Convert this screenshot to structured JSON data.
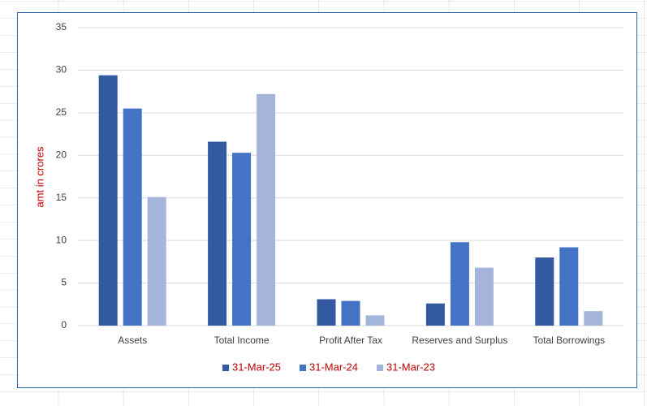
{
  "chart_data": {
    "type": "bar",
    "y_label": "amt in crores",
    "categories": [
      "Assets",
      "Total Income",
      "Profit After Tax",
      "Reserves and Surplus",
      "Total Borrowings"
    ],
    "series": [
      {
        "name": "31-Mar-25",
        "color": "#335aa1",
        "values": [
          29.4,
          21.6,
          3.1,
          2.6,
          8.0
        ]
      },
      {
        "name": "31-Mar-24",
        "color": "#4472c4",
        "values": [
          25.5,
          20.3,
          2.9,
          9.8,
          9.2
        ]
      },
      {
        "name": "31-Mar-23",
        "color": "#a5b4da",
        "values": [
          15.1,
          27.2,
          1.2,
          6.8,
          1.7
        ]
      }
    ],
    "ylim": [
      0,
      35
    ],
    "yticks": [
      0,
      5,
      10,
      15,
      20,
      25,
      30,
      35
    ],
    "grid": true,
    "legend": "bottom"
  }
}
